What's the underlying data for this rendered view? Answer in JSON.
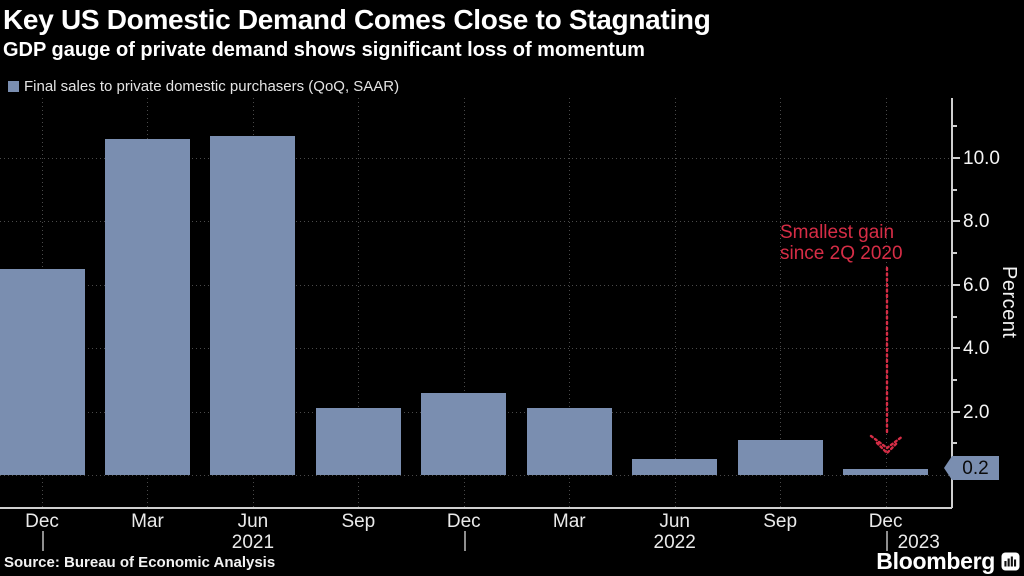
{
  "header": {
    "title": "Key US Domestic Demand Comes Close to Stagnating",
    "subtitle": "GDP gauge of private demand shows significant loss of momentum"
  },
  "legend": {
    "label": "Final sales to private domestic purchasers (QoQ, SAAR)",
    "swatch_color": "#7a8eb0"
  },
  "chart_data": {
    "type": "bar",
    "series_name": "Final sales to private domestic purchasers (QoQ, SAAR)",
    "categories": [
      "Dec",
      "Mar",
      "Jun",
      "Sep",
      "Dec",
      "Mar",
      "Jun",
      "Sep",
      "Dec"
    ],
    "values": [
      6.5,
      10.6,
      10.7,
      2.1,
      2.6,
      2.1,
      0.5,
      1.1,
      0.2
    ],
    "years": [
      {
        "label": "2021",
        "tick_index": 2,
        "placement": "center"
      },
      {
        "label": "2022",
        "tick_index": 6,
        "placement": "center"
      },
      {
        "label": "2023",
        "tick_index": 8,
        "placement": "right-of-divider"
      }
    ],
    "year_divider_tick_indices": [
      0,
      4,
      8
    ],
    "ylabel": "Percent",
    "y_major_ticks": [
      10,
      8,
      6,
      4,
      2
    ],
    "y_major_tick_labels": [
      "10.0",
      "8.0",
      "6.0",
      "4.0",
      "2.0"
    ],
    "y_minor_ticks": [
      11,
      9,
      7,
      5,
      3,
      1
    ],
    "y_gridline_values": [
      10,
      8,
      6,
      4,
      2,
      0
    ],
    "ylim": [
      -1,
      11.8
    ],
    "grid": "dotted",
    "legend_position": "top-left",
    "bar_color": "#7a8eb0",
    "current_value_label": "0.2",
    "annotation": {
      "text": "Smallest gain\nsince 2Q 2020",
      "color": "#d62d46",
      "arrow": "dotted-down-arrow"
    }
  },
  "footer": {
    "source": "Source: Bureau of Economic Analysis",
    "brand": "Bloomberg"
  }
}
